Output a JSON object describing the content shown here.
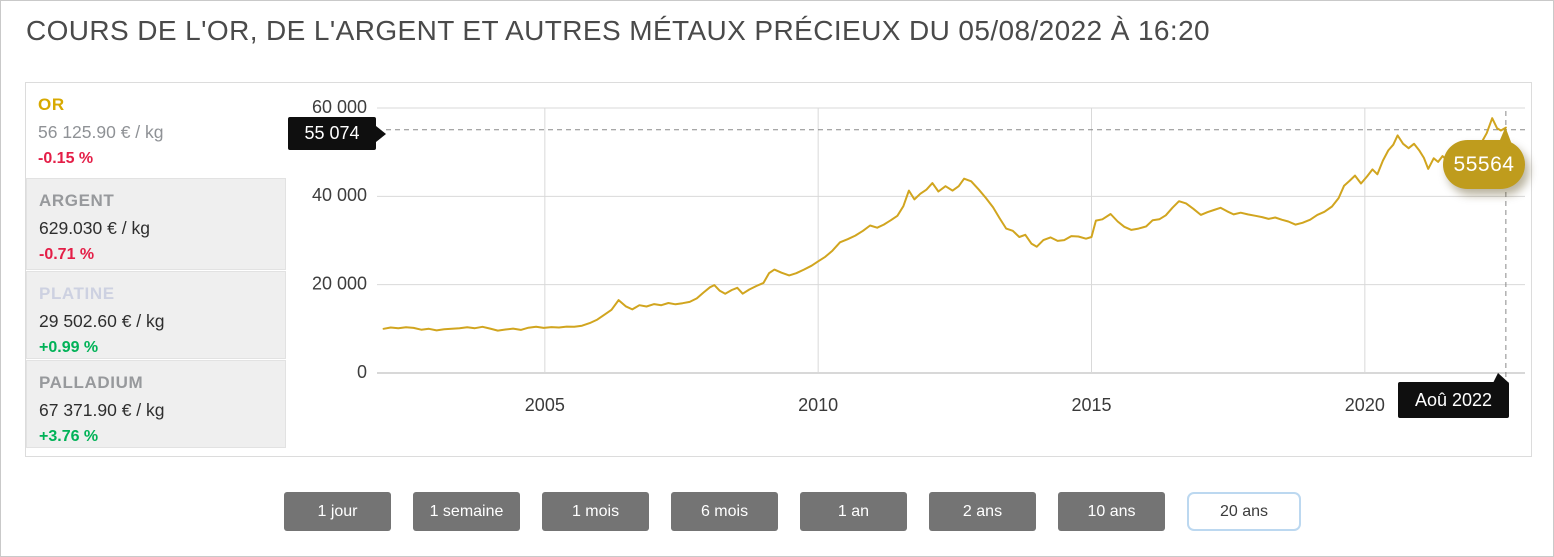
{
  "page": {
    "title": "COURS DE L'OR, DE L'ARGENT ET AUTRES MÉTAUX PRÉCIEUX DU 05/08/2022 À 16:20"
  },
  "colors": {
    "gold_line": "#d1a51f",
    "gold_bubble": "#bf9c1d",
    "up_green": "#00b257",
    "down_red": "#e41e47",
    "selected_border_blue": "#bcd8f0",
    "button_gray": "#747474"
  },
  "sidebar": {
    "items": [
      {
        "name": "OR",
        "price": "56 125.90 € / kg",
        "change": "-0.15 %",
        "trend": "down",
        "name_color": "#d8a900",
        "price_color": "#8f9296",
        "selected": true
      },
      {
        "name": "ARGENT",
        "price": "629.030 € / kg",
        "change": "-0.71 %",
        "trend": "down",
        "name_color": "#97999c",
        "price_color": "#2e2e2e",
        "selected": false
      },
      {
        "name": "PLATINE",
        "price": "29 502.60 € / kg",
        "change": "+0.99 %",
        "trend": "up",
        "name_color": "#cdd1e1",
        "price_color": "#2e2e2e",
        "selected": false
      },
      {
        "name": "PALLADIUM",
        "price": "67 371.90 € / kg",
        "change": "+3.76 %",
        "trend": "up",
        "name_color": "#97999c",
        "price_color": "#2e2e2e",
        "selected": false
      }
    ]
  },
  "ranges": {
    "options": [
      "1 jour",
      "1 semaine",
      "1 mois",
      "6 mois",
      "1 an",
      "2 ans",
      "10 ans",
      "20 ans"
    ],
    "selected": "20 ans"
  },
  "chart_data": {
    "type": "line",
    "x_range": [
      2001.93,
      2022.93
    ],
    "y_range": [
      0,
      60000
    ],
    "grid": true,
    "x_ticks": [
      {
        "v": 2005,
        "label": "2005"
      },
      {
        "v": 2010,
        "label": "2010"
      },
      {
        "v": 2015,
        "label": "2015"
      },
      {
        "v": 2020,
        "label": "2020"
      }
    ],
    "y_ticks": [
      {
        "v": 0,
        "label": "0"
      },
      {
        "v": 20000,
        "label": "20 000"
      },
      {
        "v": 40000,
        "label": "40 000"
      },
      {
        "v": 60000,
        "label": "60 000"
      }
    ],
    "annotations": {
      "y_marker": {
        "value": 55074,
        "label": "55 074"
      },
      "x_marker": {
        "label": "Aoû 2022"
      },
      "last_point": {
        "x": 2022.58,
        "value": 55564,
        "label": "55564"
      }
    },
    "series": [
      {
        "name": "OR",
        "unit": "€ / kg",
        "color": "#d1a51f",
        "points": [
          [
            2002.05,
            10000
          ],
          [
            2002.18,
            10300
          ],
          [
            2002.32,
            10150
          ],
          [
            2002.46,
            10350
          ],
          [
            2002.6,
            10200
          ],
          [
            2002.74,
            9800
          ],
          [
            2002.88,
            10000
          ],
          [
            2003.02,
            9650
          ],
          [
            2003.16,
            9900
          ],
          [
            2003.3,
            10000
          ],
          [
            2003.44,
            10150
          ],
          [
            2003.58,
            10350
          ],
          [
            2003.72,
            10150
          ],
          [
            2003.86,
            10450
          ],
          [
            2004.0,
            10050
          ],
          [
            2004.14,
            9600
          ],
          [
            2004.28,
            9850
          ],
          [
            2004.42,
            10050
          ],
          [
            2004.56,
            9750
          ],
          [
            2004.7,
            10250
          ],
          [
            2004.84,
            10450
          ],
          [
            2004.98,
            10200
          ],
          [
            2005.12,
            10400
          ],
          [
            2005.26,
            10300
          ],
          [
            2005.4,
            10500
          ],
          [
            2005.54,
            10450
          ],
          [
            2005.68,
            10700
          ],
          [
            2005.82,
            11300
          ],
          [
            2005.96,
            12100
          ],
          [
            2006.1,
            13300
          ],
          [
            2006.22,
            14300
          ],
          [
            2006.35,
            16500
          ],
          [
            2006.48,
            15100
          ],
          [
            2006.6,
            14400
          ],
          [
            2006.73,
            15350
          ],
          [
            2006.86,
            15050
          ],
          [
            2007.0,
            15600
          ],
          [
            2007.13,
            15350
          ],
          [
            2007.26,
            15850
          ],
          [
            2007.39,
            15550
          ],
          [
            2007.52,
            15800
          ],
          [
            2007.65,
            16100
          ],
          [
            2007.78,
            16900
          ],
          [
            2007.9,
            18200
          ],
          [
            2008.02,
            19400
          ],
          [
            2008.1,
            19900
          ],
          [
            2008.2,
            18600
          ],
          [
            2008.3,
            17950
          ],
          [
            2008.42,
            18800
          ],
          [
            2008.52,
            19300
          ],
          [
            2008.62,
            17950
          ],
          [
            2008.74,
            18900
          ],
          [
            2008.87,
            19700
          ],
          [
            2009.0,
            20400
          ],
          [
            2009.1,
            22600
          ],
          [
            2009.2,
            23400
          ],
          [
            2009.33,
            22700
          ],
          [
            2009.47,
            22100
          ],
          [
            2009.6,
            22600
          ],
          [
            2009.74,
            23400
          ],
          [
            2009.88,
            24300
          ],
          [
            2010.0,
            25300
          ],
          [
            2010.13,
            26300
          ],
          [
            2010.26,
            27700
          ],
          [
            2010.4,
            29600
          ],
          [
            2010.54,
            30300
          ],
          [
            2010.68,
            31100
          ],
          [
            2010.82,
            32200
          ],
          [
            2010.95,
            33400
          ],
          [
            2011.08,
            32900
          ],
          [
            2011.2,
            33600
          ],
          [
            2011.33,
            34600
          ],
          [
            2011.45,
            35600
          ],
          [
            2011.56,
            37800
          ],
          [
            2011.66,
            41300
          ],
          [
            2011.76,
            39300
          ],
          [
            2011.87,
            40600
          ],
          [
            2011.98,
            41500
          ],
          [
            2012.09,
            43000
          ],
          [
            2012.2,
            41100
          ],
          [
            2012.33,
            42300
          ],
          [
            2012.46,
            41300
          ],
          [
            2012.57,
            42300
          ],
          [
            2012.67,
            44000
          ],
          [
            2012.8,
            43400
          ],
          [
            2012.94,
            41500
          ],
          [
            2013.07,
            39600
          ],
          [
            2013.2,
            37500
          ],
          [
            2013.32,
            35000
          ],
          [
            2013.44,
            32700
          ],
          [
            2013.56,
            32200
          ],
          [
            2013.68,
            30800
          ],
          [
            2013.79,
            31300
          ],
          [
            2013.9,
            29300
          ],
          [
            2014.0,
            28600
          ],
          [
            2014.12,
            30100
          ],
          [
            2014.25,
            30700
          ],
          [
            2014.38,
            29900
          ],
          [
            2014.5,
            30100
          ],
          [
            2014.63,
            31000
          ],
          [
            2014.76,
            30900
          ],
          [
            2014.9,
            30400
          ],
          [
            2015.0,
            30800
          ],
          [
            2015.08,
            34500
          ],
          [
            2015.2,
            34800
          ],
          [
            2015.35,
            36000
          ],
          [
            2015.48,
            34300
          ],
          [
            2015.6,
            33100
          ],
          [
            2015.73,
            32400
          ],
          [
            2015.86,
            32700
          ],
          [
            2016.0,
            33200
          ],
          [
            2016.12,
            34600
          ],
          [
            2016.24,
            34800
          ],
          [
            2016.36,
            35700
          ],
          [
            2016.48,
            37400
          ],
          [
            2016.6,
            38900
          ],
          [
            2016.73,
            38400
          ],
          [
            2016.86,
            37200
          ],
          [
            2017.0,
            35800
          ],
          [
            2017.12,
            36400
          ],
          [
            2017.24,
            36900
          ],
          [
            2017.36,
            37400
          ],
          [
            2017.48,
            36600
          ],
          [
            2017.6,
            35900
          ],
          [
            2017.73,
            36300
          ],
          [
            2017.86,
            35900
          ],
          [
            2018.0,
            35600
          ],
          [
            2018.12,
            35300
          ],
          [
            2018.24,
            34900
          ],
          [
            2018.36,
            35200
          ],
          [
            2018.48,
            34700
          ],
          [
            2018.6,
            34300
          ],
          [
            2018.73,
            33600
          ],
          [
            2018.86,
            34000
          ],
          [
            2019.0,
            34700
          ],
          [
            2019.13,
            35800
          ],
          [
            2019.26,
            36500
          ],
          [
            2019.4,
            37700
          ],
          [
            2019.52,
            39600
          ],
          [
            2019.62,
            42400
          ],
          [
            2019.72,
            43500
          ],
          [
            2019.82,
            44700
          ],
          [
            2019.93,
            42900
          ],
          [
            2020.04,
            44500
          ],
          [
            2020.14,
            46100
          ],
          [
            2020.23,
            45000
          ],
          [
            2020.33,
            48100
          ],
          [
            2020.43,
            50400
          ],
          [
            2020.52,
            51700
          ],
          [
            2020.6,
            53800
          ],
          [
            2020.7,
            51900
          ],
          [
            2020.8,
            50900
          ],
          [
            2020.9,
            51900
          ],
          [
            2021.0,
            50300
          ],
          [
            2021.08,
            48700
          ],
          [
            2021.16,
            46200
          ],
          [
            2021.26,
            48600
          ],
          [
            2021.34,
            47800
          ],
          [
            2021.42,
            49100
          ],
          [
            2021.5,
            48300
          ],
          [
            2021.6,
            47300
          ],
          [
            2021.7,
            46900
          ],
          [
            2021.82,
            48500
          ],
          [
            2021.93,
            49300
          ],
          [
            2022.04,
            50200
          ],
          [
            2022.14,
            52300
          ],
          [
            2022.23,
            54300
          ],
          [
            2022.33,
            57700
          ],
          [
            2022.42,
            55400
          ],
          [
            2022.49,
            54900
          ],
          [
            2022.58,
            55564
          ]
        ]
      }
    ]
  }
}
